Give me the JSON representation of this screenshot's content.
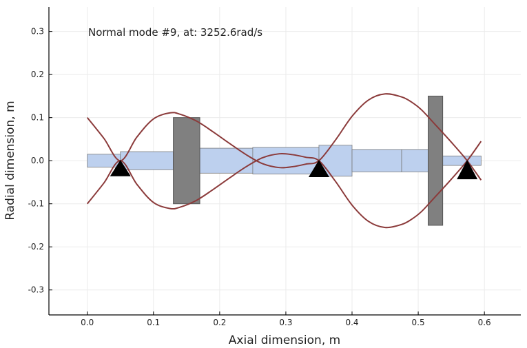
{
  "chart_data": {
    "type": "line",
    "title": "",
    "annotation": "Normal mode #9, at: 3252.6rad/s",
    "xlabel": "Axial dimension, m",
    "ylabel": "Radial dimension, m",
    "xlim": [
      -0.058,
      0.655
    ],
    "ylim": [
      -0.358,
      0.357
    ],
    "x_ticks": [
      0.0,
      0.1,
      0.2,
      0.3,
      0.4,
      0.5,
      0.6
    ],
    "x_tick_labels": [
      "0.0",
      "0.1",
      "0.2",
      "0.3",
      "0.4",
      "0.5",
      "0.6"
    ],
    "y_ticks": [
      -0.3,
      -0.2,
      -0.1,
      0.0,
      0.1,
      0.2,
      0.3
    ],
    "y_tick_labels": [
      "-0.3",
      "-0.2",
      "-0.1",
      "0.0",
      "0.1",
      "0.2",
      "0.3"
    ],
    "grid": true,
    "legend": "none",
    "colors": {
      "shaft": "#bdd0ee",
      "shaft_edge": "#7a7a7a",
      "disk": "#808080",
      "disk_edge": "#555555",
      "mode": "#8b3a3a",
      "bearing": "#000000",
      "grid": "#ebebeb"
    },
    "shaft_elements": [
      {
        "x0": 0.0,
        "x1": 0.05,
        "r": 0.015
      },
      {
        "x0": 0.05,
        "x1": 0.13,
        "r": 0.021
      },
      {
        "x0": 0.13,
        "x1": 0.17,
        "r": 0.021
      },
      {
        "x0": 0.17,
        "x1": 0.25,
        "r": 0.029
      },
      {
        "x0": 0.25,
        "x1": 0.35,
        "r": 0.031
      },
      {
        "x0": 0.35,
        "x1": 0.4,
        "r": 0.036
      },
      {
        "x0": 0.4,
        "x1": 0.475,
        "r": 0.026
      },
      {
        "x0": 0.475,
        "x1": 0.515,
        "r": 0.026
      },
      {
        "x0": 0.515,
        "x1": 0.595,
        "r": 0.011
      }
    ],
    "disks": [
      {
        "x0": 0.13,
        "x1": 0.17,
        "r": 0.1
      },
      {
        "x0": 0.515,
        "x1": 0.537,
        "r": 0.15
      }
    ],
    "bearings": [
      {
        "x": 0.05,
        "y": -0.02
      },
      {
        "x": 0.35,
        "y": -0.022
      },
      {
        "x": 0.574,
        "y": -0.027
      }
    ],
    "series": [
      {
        "x": [
          0.0,
          0.025,
          0.05,
          0.075,
          0.1,
          0.125,
          0.14,
          0.165,
          0.19,
          0.215,
          0.24,
          0.265,
          0.29,
          0.31,
          0.33,
          0.35,
          0.375,
          0.4,
          0.425,
          0.45,
          0.475,
          0.49,
          0.505,
          0.525,
          0.55,
          0.574,
          0.595
        ],
        "y": [
          0.1,
          0.052,
          0.0,
          0.055,
          0.097,
          0.111,
          0.108,
          0.092,
          0.067,
          0.04,
          0.014,
          -0.007,
          -0.016,
          -0.014,
          -0.008,
          0.0,
          0.048,
          0.103,
          0.141,
          0.155,
          0.148,
          0.136,
          0.118,
          0.085,
          0.043,
          0.0,
          -0.045
        ]
      },
      {
        "x": [
          0.0,
          0.025,
          0.05,
          0.075,
          0.1,
          0.125,
          0.14,
          0.165,
          0.19,
          0.215,
          0.24,
          0.265,
          0.29,
          0.31,
          0.33,
          0.35,
          0.375,
          0.4,
          0.425,
          0.45,
          0.475,
          0.49,
          0.505,
          0.525,
          0.55,
          0.574,
          0.595
        ],
        "y": [
          -0.1,
          -0.052,
          0.0,
          -0.055,
          -0.097,
          -0.111,
          -0.108,
          -0.092,
          -0.067,
          -0.04,
          -0.014,
          0.007,
          0.016,
          0.014,
          0.008,
          0.0,
          -0.048,
          -0.103,
          -0.141,
          -0.155,
          -0.148,
          -0.136,
          -0.118,
          -0.085,
          -0.043,
          0.0,
          0.045
        ]
      }
    ]
  }
}
